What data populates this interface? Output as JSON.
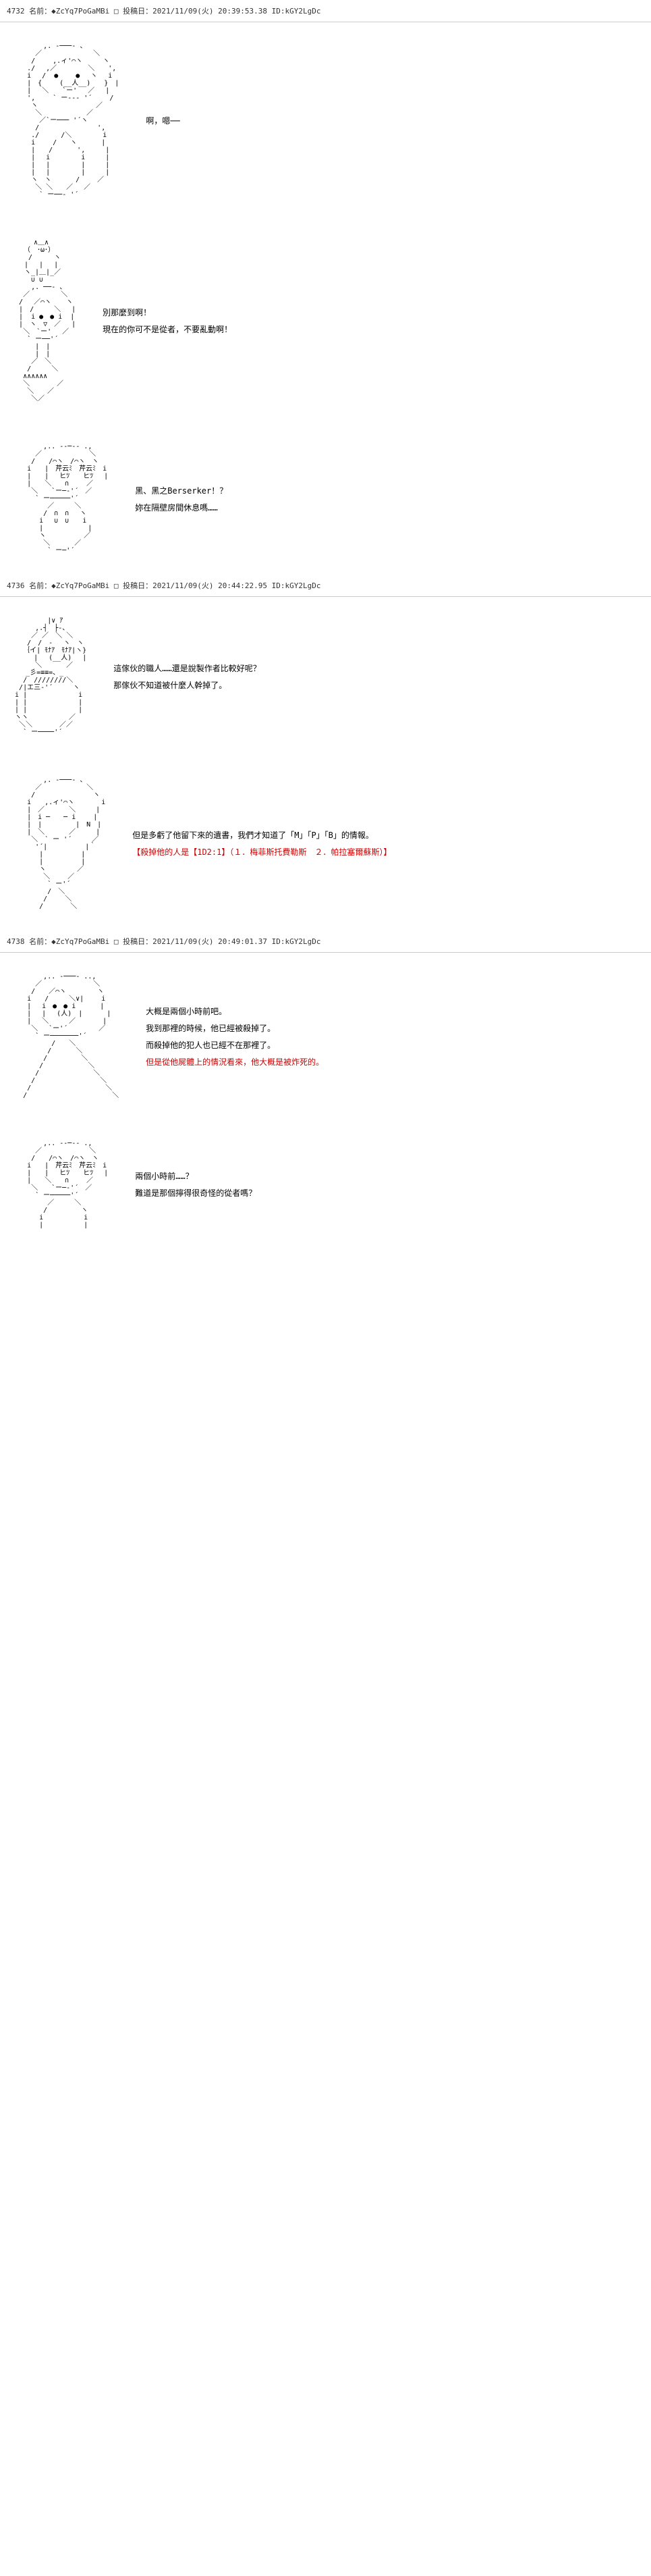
{
  "post_headers": {
    "h4732": "4732 名前：◆ZcYq7PoGaMBi □ 投稿日：2021/11/09(火) 20:39:53.38 ID:kGY2LgDc",
    "h4736": "4736 名前：◆ZcYq7PoGaMBi □ 投稿日：2021/11/09(火) 20:44:22.95 ID:kGY2LgDc",
    "h4738": "4738 名前：◆ZcYq7PoGaMBi □ 投稿日：2021/11/09(火) 20:49:01.37 ID:kGY2LgDc"
  },
  "panels": {
    "p1": {
      "aa": "         ,. -───- 、\n       ／　　　　　　　 ＼\n      /　　 ,.ィ'⌒ヽ　　　ヽ\n     ./　 ,／　　　　 ＼　　',\n     i　 /  ●　　 ●　 ヽ　 i\n     |　{　　 (__人__)　　}　|\n     |　 ＼　　`ー'　 ／　 |\n     ',　　 ` ー--‐ '´ 　　/\n      ヽ　　　　　　　　 ／\n       ＼　　　　　　 ／\n        ／`ー─── '´ヽ\n       /　　　　　　　　 ',\n      ./　 　 /＼　　　　 i\n      i　　 /　　ヽ　　　 |\n      |　　/　　　 ',　　　|\n      |　 i　　　　 i　　　|\n      |　 |　　　　 |　　　|\n      |　 |　　　　 |　　　|\n      ヽ　ヽ　　　 /　　 ／\n       ＼ ＼　　／　 ／\n        ` ー──‐ '´",
      "lines": [
        "啊，嗯──"
      ]
    },
    "p2": {
      "aa": "　　　　∧＿∧\n　　　（　･ω･）\n　　  /　 　 ヽ\n　　 |　 |　 |\n　　 ヽ_|＿|_／\n　　　 ∪ ∪\n      ,. ──- 、\n    ／　　　　 ＼\n   /　 ／⌒ヽ　  ヽ\n   |　/　　　＼　 |\n   |  i ●　● i  |\n   |　ヽ　▽　／　 |\n    ＼　`ー'　 ／\n     ` ー──'´\n       |　|\n       |　|\n      ／　＼\n     /　　　＼\n    ∧∧∧∧∧∧\n    ＼　　　　／\n     ＼　　／\n      ＼／",
      "lines": [
        "別那麼到啊！",
        "現在的你可不是從者，不要亂動啊！"
      ]
    },
    "p3": {
      "aa": "         ,.. -‐─‐- .,\n       ／　　　　　　　＼\n      /　　/⌒ヽ　/⌒ヽ　ヽ\n     i　　|　芹云ﾐ　芹云ﾐ　i\n     |　　|　 ヒﾂ　　ヒﾂ　 |\n     |　　＼　　∩　　 ／\n      ＼　　`ー─‐'´　／\n       ` ー─────'´\n          ／　　　＼\n         /　∩　∩　 ヽ\n        i　 ∪　∪　　i\n        |　　　　　　 |\n        ヽ　　　　　 ／\n         ＼　　　 ／\n          ` ー─'´",
      "lines": [
        "黑、黑之Berserker！？",
        "妳在隔壁房間休息嗎……"
      ]
    },
    "p4": {
      "aa": "          |∨ ｱ\n       ,.┤　├-、\n      ／ ／　＼ ＼\n     /　/　-　 ヽ　ヽ\n    ｛イ| ﾓﾅｱ　ﾓﾅｱ|ヽ}\n     　|　 (__人)　 |\n       ＼　　　 ／\n  　 _彡=≡≡=、_\n    /　////////＼\n   /|エ三-'´　　　ヽ\n  i |　　　　　　　 i\n  | |　　　　　　　 |\n  | |　　　　　　　 |\n  ヽヽ　　　　　　／\n   ＼＼　　　　／／\n    ` ー────'´",
      "lines": [
        "這傢伙的職人……還是說製作者比較好呢？",
        "那傢伙不知道被什麼人幹掉了。"
      ]
    },
    "p5": {
      "aa": "         ,. -───- 、\n       ／　　　　　　 ＼\n      /　　　　　　　　 ヽ\n     i　　,.ィ'⌒ヽ　　　　i\n     |　／　　　 ＼　　　|\n     |　i ─　　─ i　　 |\n     |　|　　　　　|　N　|\n     |　＼　　　 ／　　　|\n      ＼　` ー '´　　　／\n       '´|　　　　　 |｀\n        |　　　　　 |\n        |　　　　　 |\n        ヽ　　　　 ／\n         ＼　　 ／\n          ` ー'´\n          /　＼\n         /　　 ＼\n        /　　　　＼",
      "lines_black": [
        "但是多虧了他留下來的遺書，我們才知道了「M」「P」「B」的情報。"
      ],
      "lines_red": [
        "【殺掉他的人是【1D2:1】（１．梅菲斯托費勒斯　２．帕拉塞爾蘇斯）】"
      ]
    },
    "p6": {
      "aa": "         ,.. -───- ..,\n       ／　　　　　　　 ＼\n      /　　／⌒ヽ　　　　 ヽ\n     i　　/　　　＼∨|　　 i\n     |　 i　●　● i　　　 |\n     |　 |　 (人)　|　　　 |\n     |　 ＼　　　／　　　　|\n      ＼　 `ー'´　　　　 ／\n       ` ー───────'´\n           /　　＼\n          /　　　 ＼\n         /　　　　　＼\n        /　　　　　　 ＼\n       /　　　　　　　　＼\n      /　　　　　　　　　 ＼\n     /　　　　　　　　　　　＼\n    /　　　　　　　　　　　　 ＼",
      "lines_black": [
        "大概是兩個小時前吧。",
        "我到那裡的時候，他已經被殺掉了。",
        "而殺掉他的犯人也已經不在那裡了。"
      ],
      "lines_red": [
        "但是從他屍體上的情況看來，他大概是被炸死的。"
      ]
    },
    "p7": {
      "aa": "         ,.. -‐─‐- .,\n       ／　　　　　　　＼\n      /　　/⌒ヽ　/⌒ヽ　ヽ\n     i　　|　芹云ﾐ　芹云ﾐ　i\n     |　　|　 ヒﾂ　　ヒﾂ　 |\n     |　　＼　　∩　　 ／\n      ＼　　`ー─‐'´　／\n       ` ー─────'´\n          ／　　　＼\n         /　　　　　ヽ\n        i　　　　　　i\n        |　　　　　　|",
      "lines": [
        "兩個小時前……？",
        "難道是那個擰得很奇怪的從者嗎？"
      ]
    }
  }
}
